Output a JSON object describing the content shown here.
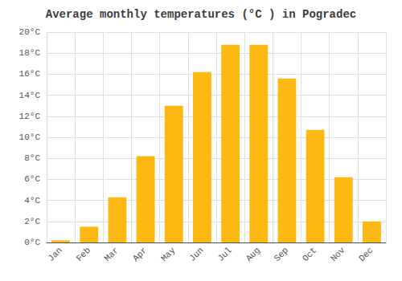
{
  "chart_data": {
    "type": "bar",
    "title": "Average monthly temperatures (°C ) in Pogradec",
    "categories": [
      "Jan",
      "Feb",
      "Mar",
      "Apr",
      "May",
      "Jun",
      "Jul",
      "Aug",
      "Sep",
      "Oct",
      "Nov",
      "Dec"
    ],
    "values": [
      0.2,
      1.5,
      4.3,
      8.2,
      13.0,
      16.2,
      18.8,
      18.8,
      15.6,
      10.7,
      6.2,
      2.0
    ],
    "color": "#FDB813",
    "ylim": [
      0,
      20
    ],
    "yticks": [
      {
        "value": 0,
        "label": "0°C"
      },
      {
        "value": 2,
        "label": "2°C"
      },
      {
        "value": 4,
        "label": "4°C"
      },
      {
        "value": 6,
        "label": "6°C"
      },
      {
        "value": 8,
        "label": "8°C"
      },
      {
        "value": 10,
        "label": "10°C"
      },
      {
        "value": 12,
        "label": "12°C"
      },
      {
        "value": 14,
        "label": "14°C"
      },
      {
        "value": 16,
        "label": "16°C"
      },
      {
        "value": 18,
        "label": "18°C"
      },
      {
        "value": 20,
        "label": "20°C"
      }
    ],
    "grid": true
  }
}
